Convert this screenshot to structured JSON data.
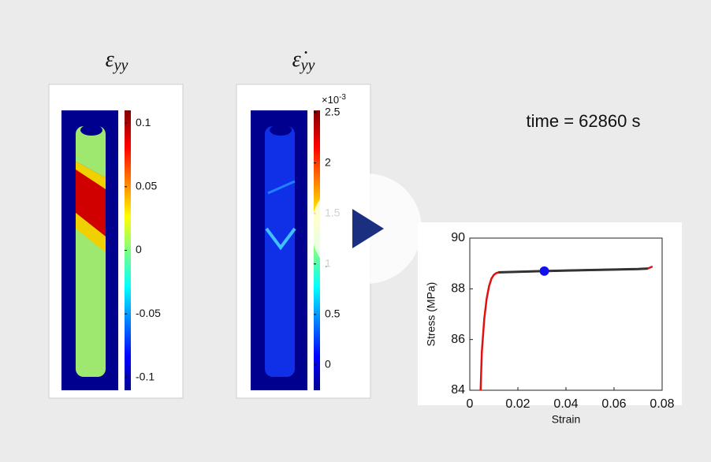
{
  "panels": [
    {
      "title_symbol": "ε",
      "title_subscript": "yy",
      "clim": [
        -0.11,
        0.11
      ],
      "ticks": [
        0.1,
        0.05,
        0,
        -0.05,
        -0.1
      ]
    },
    {
      "title_symbol": "ε̇",
      "title_subscript": "yy",
      "clim": [
        -0.25,
        2.52
      ],
      "ticks": [
        2.5,
        2,
        1.5,
        1,
        0.5,
        0
      ],
      "scale_label": "×10",
      "scale_exponent": "-3"
    }
  ],
  "time_label": "time = 62860 s",
  "chart_data": {
    "type": "line",
    "x_label": "Strain",
    "y_label": "Stress (MPa)",
    "xlim": [
      0,
      0.08
    ],
    "xticks": [
      0,
      0.02,
      0.04,
      0.06,
      0.08
    ],
    "ylim": [
      84,
      90
    ],
    "yticks": [
      84,
      86,
      88,
      90
    ],
    "series": [
      {
        "color": "#e01010",
        "x": [
          0.0045,
          0.005,
          0.006,
          0.007,
          0.008,
          0.009,
          0.01,
          0.011,
          0.012,
          0.03,
          0.05,
          0.07,
          0.074,
          0.076
        ],
        "values": [
          84,
          85.5,
          86.8,
          87.6,
          88.1,
          88.4,
          88.55,
          88.62,
          88.65,
          88.7,
          88.74,
          88.78,
          88.8,
          88.88
        ]
      },
      {
        "color": "#333333",
        "x": [
          0.012,
          0.03,
          0.05,
          0.07,
          0.074
        ],
        "values": [
          88.65,
          88.7,
          88.74,
          88.78,
          88.8
        ]
      }
    ],
    "point": {
      "x": 0.031,
      "y": 88.7,
      "color": "#1010f0"
    }
  }
}
